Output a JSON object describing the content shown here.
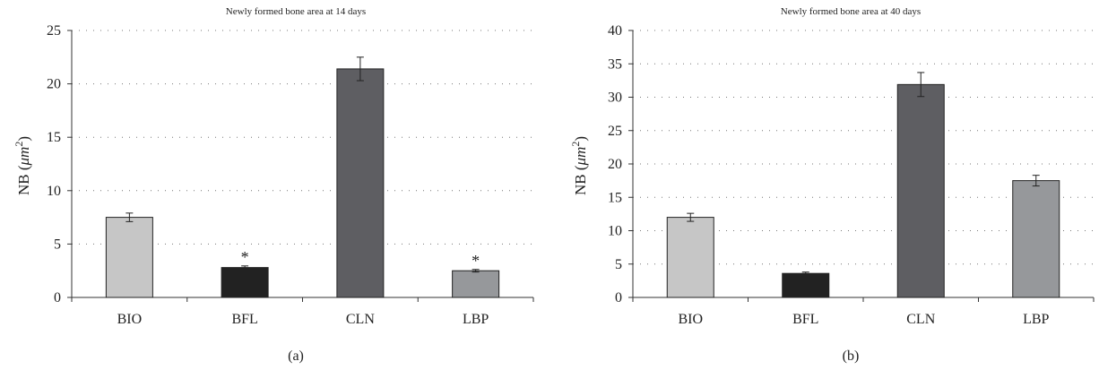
{
  "chart_data": [
    {
      "type": "bar",
      "title": "Newly formed bone area at 14 days",
      "ylabel_prefix": "NB (",
      "ylabel_unit": "μm",
      "ylabel_exp": "2",
      "ylabel_suffix": ")",
      "panel_label": "(a)",
      "categories": [
        "BIO",
        "BFL",
        "CLN",
        "LBP"
      ],
      "values": [
        7.5,
        2.8,
        21.4,
        2.5
      ],
      "errors": [
        0.4,
        0.15,
        1.1,
        0.12
      ],
      "significance": [
        "",
        "*",
        "",
        "*"
      ],
      "colors": [
        "#c6c6c6",
        "#222222",
        "#5e5e62",
        "#96989b"
      ],
      "ylim": [
        0,
        25
      ],
      "yticks": [
        0,
        5,
        10,
        15,
        20,
        25
      ],
      "grid": true
    },
    {
      "type": "bar",
      "title": "Newly formed bone area at 40 days",
      "ylabel_prefix": "NB (",
      "ylabel_unit": "μm",
      "ylabel_exp": "2",
      "ylabel_suffix": ")",
      "panel_label": "(b)",
      "categories": [
        "BIO",
        "BFL",
        "CLN",
        "LBP"
      ],
      "values": [
        12.0,
        3.6,
        31.9,
        17.5
      ],
      "errors": [
        0.6,
        0.2,
        1.8,
        0.8
      ],
      "significance": [
        "",
        "",
        "",
        ""
      ],
      "colors": [
        "#c6c6c6",
        "#222222",
        "#5e5e62",
        "#96989b"
      ],
      "ylim": [
        0,
        40
      ],
      "yticks": [
        0,
        5,
        10,
        15,
        20,
        25,
        30,
        35,
        40
      ],
      "grid": true
    }
  ]
}
